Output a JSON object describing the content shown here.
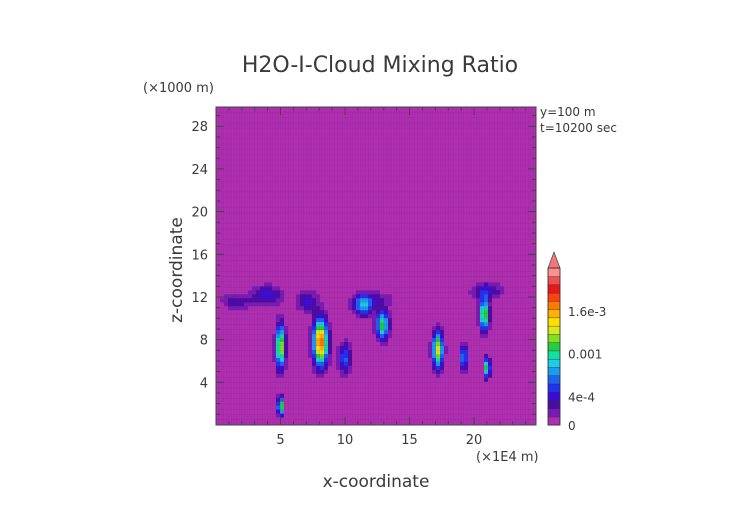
{
  "chart_data": {
    "type": "heatmap",
    "title": "H2O-I-Cloud Mixing Ratio",
    "xlabel": "x-coordinate",
    "ylabel": "z-coordinate",
    "x_unit": "(×1E4 m)",
    "y_unit": "(×1000 m)",
    "xlim": [
      0,
      24.8
    ],
    "ylim": [
      0,
      29.8
    ],
    "x_ticks": [
      5,
      10,
      15,
      20
    ],
    "y_ticks": [
      4,
      8,
      12,
      16,
      20,
      24,
      28
    ],
    "info": [
      "y=100 m",
      "t=10200 sec"
    ],
    "colorbar": {
      "range": [
        0,
        0.0022
      ],
      "tick_values": [
        0,
        0.0004,
        0.001,
        0.0016
      ],
      "tick_labels": [
        "0",
        "4e-4",
        "0.001",
        "1.6e-3"
      ],
      "colors": [
        "#b02eb0",
        "#7a1ab4",
        "#4a0aa6",
        "#3a0ad6",
        "#2230f0",
        "#1a64f0",
        "#1a9cf0",
        "#1acde8",
        "#10e0a0",
        "#20d040",
        "#80e020",
        "#d8e818",
        "#ffe000",
        "#ffb000",
        "#ff7a00",
        "#ff4010",
        "#e81818",
        "#f05050",
        "#ff9090"
      ],
      "extend": "max"
    },
    "field_features": [
      {
        "x": 1.6,
        "z": 11.6,
        "sx": 1.1,
        "sz": 0.7,
        "v": 0.00035
      },
      {
        "x": 4.0,
        "z": 12.2,
        "sx": 1.2,
        "sz": 0.9,
        "v": 0.00045
      },
      {
        "x": 5.0,
        "z": 7.4,
        "sx": 0.35,
        "sz": 2.0,
        "v": 0.0014
      },
      {
        "x": 5.0,
        "z": 1.8,
        "sx": 0.2,
        "sz": 0.8,
        "v": 0.0016
      },
      {
        "x": 7.1,
        "z": 11.6,
        "sx": 0.8,
        "sz": 1.0,
        "v": 0.0004
      },
      {
        "x": 8.1,
        "z": 7.8,
        "sx": 0.55,
        "sz": 2.1,
        "v": 0.0018
      },
      {
        "x": 10.0,
        "z": 6.3,
        "sx": 0.5,
        "sz": 1.4,
        "v": 0.0006
      },
      {
        "x": 11.4,
        "z": 11.2,
        "sx": 0.7,
        "sz": 0.9,
        "v": 0.0008
      },
      {
        "x": 12.9,
        "z": 9.4,
        "sx": 0.5,
        "sz": 1.3,
        "v": 0.0011
      },
      {
        "x": 12.1,
        "z": 11.8,
        "sx": 1.6,
        "sz": 0.7,
        "v": 0.0003
      },
      {
        "x": 17.2,
        "z": 7.1,
        "sx": 0.4,
        "sz": 1.7,
        "v": 0.0014
      },
      {
        "x": 19.2,
        "z": 6.4,
        "sx": 0.3,
        "sz": 1.1,
        "v": 0.0008
      },
      {
        "x": 20.8,
        "z": 10.4,
        "sx": 0.35,
        "sz": 1.5,
        "v": 0.0013
      },
      {
        "x": 21.0,
        "z": 5.4,
        "sx": 0.25,
        "sz": 0.9,
        "v": 0.0012
      },
      {
        "x": 21.0,
        "z": 12.6,
        "sx": 1.2,
        "sz": 0.8,
        "v": 0.0004
      }
    ]
  }
}
